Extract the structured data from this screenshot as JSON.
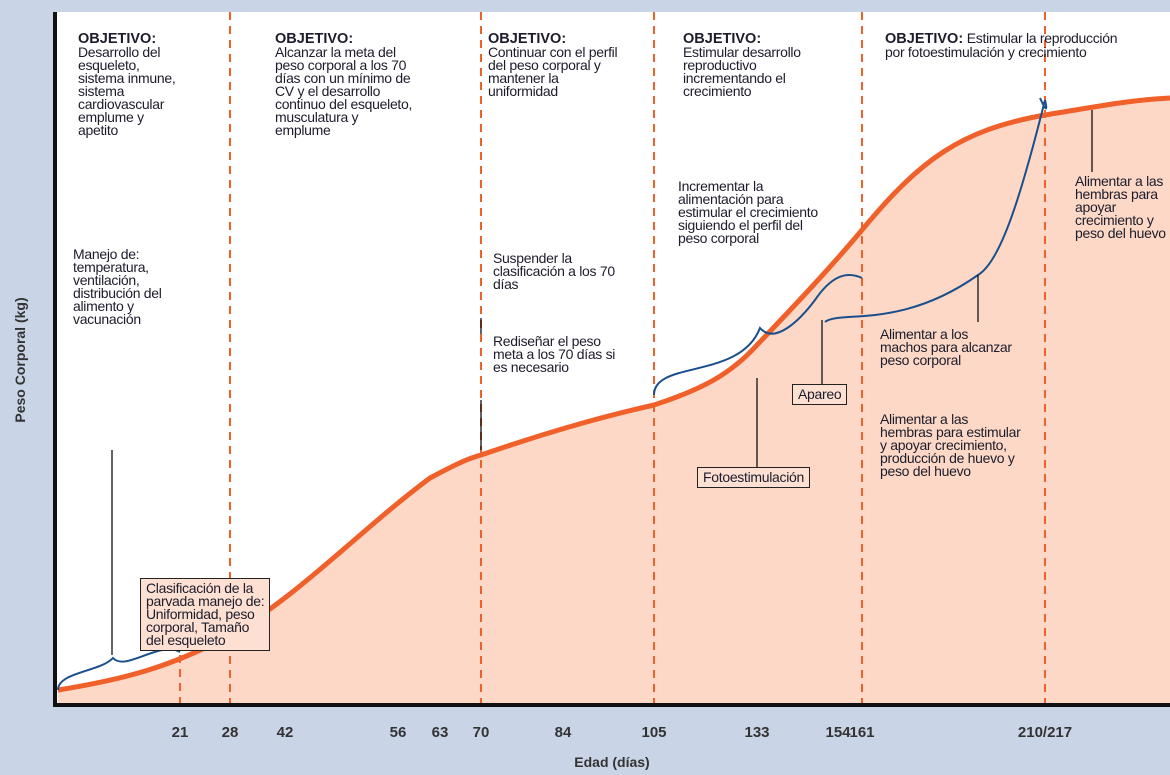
{
  "objectives": [
    {
      "heading": "OBJETIVO:",
      "lines": [
        "Desarrollo del",
        "esqueleto,",
        "sistema inmune,",
        "sistema",
        "cardiovascular",
        "emplume y",
        "apetito"
      ]
    },
    {
      "heading": "OBJETIVO:",
      "lines": [
        "Alcanzar la meta del",
        "peso corporal a los 70",
        "días con un mínimo de",
        "CV y el desarrollo",
        "continuo del esqueleto,",
        "musculatura y",
        "emplume"
      ]
    },
    {
      "heading": "OBJETIVO:",
      "lines": [
        "Continuar con el perfil",
        "del peso corporal y",
        "mantener la",
        "uniformidad"
      ]
    },
    {
      "heading": "OBJETIVO:",
      "lines": [
        "Estimular desarrollo",
        "reproductivo",
        "incrementando el",
        "crecimiento"
      ]
    },
    {
      "heading": "OBJETIVO:",
      "lines": [
        "Estimular la reproducción",
        "por fotoestimulación y crecimiento"
      ]
    }
  ],
  "notes": [
    {
      "lines": [
        "Manejo de:",
        "temperatura,",
        "ventilación,",
        "distribución del",
        "alimento y",
        "vacunación"
      ]
    },
    {
      "lines": [
        "Clasificación de la",
        "parvada manejo de:",
        "Uniformidad, peso",
        "corporal, Tamaño",
        "del esqueleto"
      ]
    },
    {
      "lines": [
        "Suspender la",
        "clasificación a los 70",
        "días"
      ]
    },
    {
      "lines": [
        "Rediseñar el peso",
        "meta a los 70 días si",
        "es necesario"
      ]
    },
    {
      "lines": [
        "Incrementar la",
        "alimentación para",
        "estimular el crecimiento",
        "siguiendo el perfil del",
        "peso corporal"
      ]
    },
    {
      "lines": [
        "Fotoestimulación"
      ]
    },
    {
      "lines": [
        "Apareo"
      ]
    },
    {
      "lines": [
        "Alimentar a los",
        "machos para alcanzar",
        "peso corporal"
      ]
    },
    {
      "lines": [
        "Alimentar a las",
        "hembras para estimular",
        "y apoyar crecimiento,",
        "producción de huevo y",
        "peso del huevo"
      ]
    },
    {
      "lines": [
        "Alimentar a las",
        "hembras para",
        "apoyar",
        "crecimiento y",
        "peso del huevo"
      ]
    }
  ],
  "x_axis": {
    "title": "Edad (días)",
    "ticks": [
      "21",
      "28",
      "42",
      "56",
      "63",
      "70",
      "84",
      "105",
      "133",
      "154",
      "161",
      "210/217"
    ]
  },
  "y_axis": {
    "title": "Peso Corporal (kg)"
  }
}
